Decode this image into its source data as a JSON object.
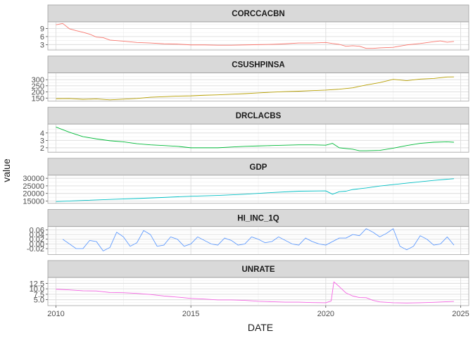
{
  "chart_data": {
    "type": "line",
    "facet": "vertical-strips",
    "xlabel": "DATE",
    "ylabel": "value",
    "x_ticks": [
      "2010",
      "2015",
      "2020",
      "2025"
    ],
    "xlim": [
      2009.7,
      2025.3
    ],
    "grid": true,
    "panels": [
      {
        "name": "CORCCACBN",
        "color": "#F8766D",
        "ylim": [
          1.0,
          11.5
        ],
        "yticks": [
          3,
          6,
          9
        ],
        "ytick_labels": [
          "3",
          "6",
          "9"
        ],
        "x": [
          2010.0,
          2010.25,
          2010.5,
          2010.75,
          2011.0,
          2011.25,
          2011.5,
          2011.75,
          2012.0,
          2012.5,
          2013.0,
          2013.5,
          2014.0,
          2014.5,
          2015.0,
          2015.5,
          2016.0,
          2016.5,
          2017.0,
          2017.5,
          2018.0,
          2018.5,
          2019.0,
          2019.5,
          2020.0,
          2020.25,
          2020.5,
          2020.75,
          2021.0,
          2021.25,
          2021.5,
          2021.75,
          2022.0,
          2022.5,
          2023.0,
          2023.5,
          2024.0,
          2024.25,
          2024.5,
          2024.75
        ],
        "y": [
          10.4,
          10.9,
          8.9,
          8.2,
          7.6,
          6.9,
          5.8,
          5.6,
          4.7,
          4.3,
          3.8,
          3.6,
          3.3,
          3.2,
          2.9,
          2.9,
          2.8,
          2.8,
          2.9,
          3.0,
          3.1,
          3.3,
          3.6,
          3.6,
          3.8,
          3.4,
          3.1,
          2.4,
          2.6,
          2.4,
          1.6,
          1.6,
          1.8,
          2.0,
          2.9,
          3.4,
          4.1,
          4.4,
          3.9,
          4.2
        ]
      },
      {
        "name": "CSUSHPINSA",
        "color": "#B79F00",
        "ylim": [
          125,
          355
        ],
        "yticks": [
          150,
          200,
          250,
          300
        ],
        "ytick_labels": [
          "150",
          "200",
          "250",
          "300"
        ],
        "x": [
          2010.0,
          2010.5,
          2011.0,
          2011.5,
          2012.0,
          2012.5,
          2013.0,
          2013.5,
          2014.0,
          2014.5,
          2015.0,
          2015.5,
          2016.0,
          2016.5,
          2017.0,
          2017.5,
          2018.0,
          2018.5,
          2019.0,
          2019.5,
          2020.0,
          2020.5,
          2021.0,
          2021.5,
          2022.0,
          2022.5,
          2023.0,
          2023.5,
          2024.0,
          2024.5,
          2024.75
        ],
        "y": [
          145,
          146,
          140,
          143,
          135,
          141,
          147,
          157,
          161,
          166,
          168,
          173,
          176,
          181,
          186,
          192,
          198,
          203,
          206,
          211,
          215,
          222,
          234,
          257,
          276,
          303,
          292,
          305,
          310,
          322,
          323
        ]
      },
      {
        "name": "DRCLACBS",
        "color": "#00BA38",
        "ylim": [
          1.4,
          5.2
        ],
        "yticks": [
          2,
          3,
          4
        ],
        "ytick_labels": [
          "2",
          "3",
          "4"
        ],
        "x": [
          2010.0,
          2010.5,
          2011.0,
          2011.5,
          2012.0,
          2012.5,
          2013.0,
          2013.5,
          2014.0,
          2014.5,
          2015.0,
          2015.5,
          2016.0,
          2016.5,
          2017.0,
          2017.5,
          2018.0,
          2018.5,
          2019.0,
          2019.5,
          2020.0,
          2020.25,
          2020.5,
          2020.75,
          2021.0,
          2021.25,
          2021.5,
          2022.0,
          2022.5,
          2023.0,
          2023.5,
          2024.0,
          2024.5,
          2024.75
        ],
        "y": [
          4.8,
          4.1,
          3.5,
          3.2,
          2.95,
          2.8,
          2.55,
          2.4,
          2.3,
          2.2,
          2.0,
          2.0,
          2.0,
          2.1,
          2.2,
          2.25,
          2.3,
          2.35,
          2.4,
          2.4,
          2.35,
          2.6,
          2.0,
          1.9,
          1.8,
          1.6,
          1.6,
          1.65,
          1.95,
          2.3,
          2.6,
          2.75,
          2.8,
          2.75
        ]
      },
      {
        "name": "GDP",
        "color": "#00BFC4",
        "ylim": [
          13500,
          32000
        ],
        "yticks": [
          15000,
          20000,
          25000,
          30000
        ],
        "ytick_labels": [
          "15000",
          "20000",
          "25000",
          "30000"
        ],
        "x": [
          2010.0,
          2011.0,
          2012.0,
          2013.0,
          2014.0,
          2015.0,
          2016.0,
          2017.0,
          2018.0,
          2019.0,
          2020.0,
          2020.25,
          2020.5,
          2020.75,
          2021.0,
          2021.5,
          2022.0,
          2023.0,
          2024.0,
          2024.75
        ],
        "y": [
          14700,
          15400,
          16100,
          16700,
          17400,
          18200,
          18700,
          19500,
          20600,
          21500,
          21700,
          19500,
          21200,
          21500,
          22600,
          23600,
          24900,
          26800,
          28600,
          29700
        ]
      },
      {
        "name": "HI_INC_1Q",
        "color": "#619CFF",
        "ylim": [
          -0.045,
          0.075
        ],
        "yticks": [
          -0.02,
          0.0,
          0.02,
          0.04,
          0.06
        ],
        "ytick_labels": [
          "-0.02",
          "0.00",
          "0.02",
          "0.04",
          "0.06"
        ],
        "x": [
          2010.25,
          2010.5,
          2010.75,
          2011.0,
          2011.25,
          2011.5,
          2011.75,
          2012.0,
          2012.25,
          2012.5,
          2012.75,
          2013.0,
          2013.25,
          2013.5,
          2013.75,
          2014.0,
          2014.25,
          2014.5,
          2014.75,
          2015.0,
          2015.25,
          2015.5,
          2015.75,
          2016.0,
          2016.25,
          2016.5,
          2016.75,
          2017.0,
          2017.25,
          2017.5,
          2017.75,
          2018.0,
          2018.25,
          2018.5,
          2018.75,
          2019.0,
          2019.25,
          2019.5,
          2019.75,
          2020.0,
          2020.25,
          2020.5,
          2020.75,
          2021.0,
          2021.25,
          2021.5,
          2021.75,
          2022.0,
          2022.25,
          2022.5,
          2022.75,
          2023.0,
          2023.25,
          2023.5,
          2023.75,
          2024.0,
          2024.25,
          2024.5,
          2024.75
        ],
        "y": [
          0.02,
          0.0,
          -0.02,
          -0.02,
          0.015,
          0.01,
          -0.03,
          -0.015,
          0.05,
          0.03,
          -0.01,
          0.005,
          0.057,
          0.04,
          -0.01,
          -0.005,
          0.03,
          0.02,
          -0.01,
          0.0,
          0.03,
          0.015,
          0.0,
          -0.005,
          0.025,
          0.015,
          -0.005,
          0.0,
          0.03,
          0.02,
          0.005,
          0.01,
          0.03,
          0.015,
          0.0,
          -0.005,
          0.025,
          0.01,
          0.0,
          -0.005,
          0.01,
          0.025,
          0.025,
          0.04,
          0.035,
          0.065,
          0.05,
          0.03,
          0.045,
          0.065,
          -0.01,
          -0.025,
          -0.01,
          0.035,
          0.02,
          -0.005,
          0.0,
          0.03,
          -0.005
        ]
      },
      {
        "name": "UNRATE",
        "color": "#F564E3",
        "ylim": [
          2.3,
          15.2
        ],
        "yticks": [
          5.0,
          7.5,
          10.0,
          12.5
        ],
        "ytick_labels": [
          "5.0",
          "7.5",
          "10.0",
          "12.5"
        ],
        "x": [
          2010.0,
          2010.5,
          2011.0,
          2011.5,
          2012.0,
          2012.5,
          2013.0,
          2013.5,
          2014.0,
          2014.5,
          2015.0,
          2015.5,
          2016.0,
          2016.5,
          2017.0,
          2017.5,
          2018.0,
          2018.5,
          2019.0,
          2019.5,
          2020.0,
          2020.2,
          2020.3,
          2020.5,
          2020.75,
          2021.0,
          2021.25,
          2021.5,
          2021.75,
          2022.0,
          2022.5,
          2023.0,
          2023.5,
          2024.0,
          2024.5,
          2024.75
        ],
        "y": [
          9.8,
          9.5,
          9.1,
          9.0,
          8.3,
          8.2,
          7.9,
          7.4,
          6.7,
          6.2,
          5.6,
          5.3,
          4.9,
          4.9,
          4.7,
          4.3,
          4.1,
          3.9,
          3.9,
          3.7,
          3.6,
          4.4,
          13.2,
          11.0,
          8.1,
          6.7,
          6.0,
          5.9,
          4.7,
          4.0,
          3.6,
          3.5,
          3.6,
          3.8,
          4.1,
          4.2
        ]
      }
    ]
  }
}
